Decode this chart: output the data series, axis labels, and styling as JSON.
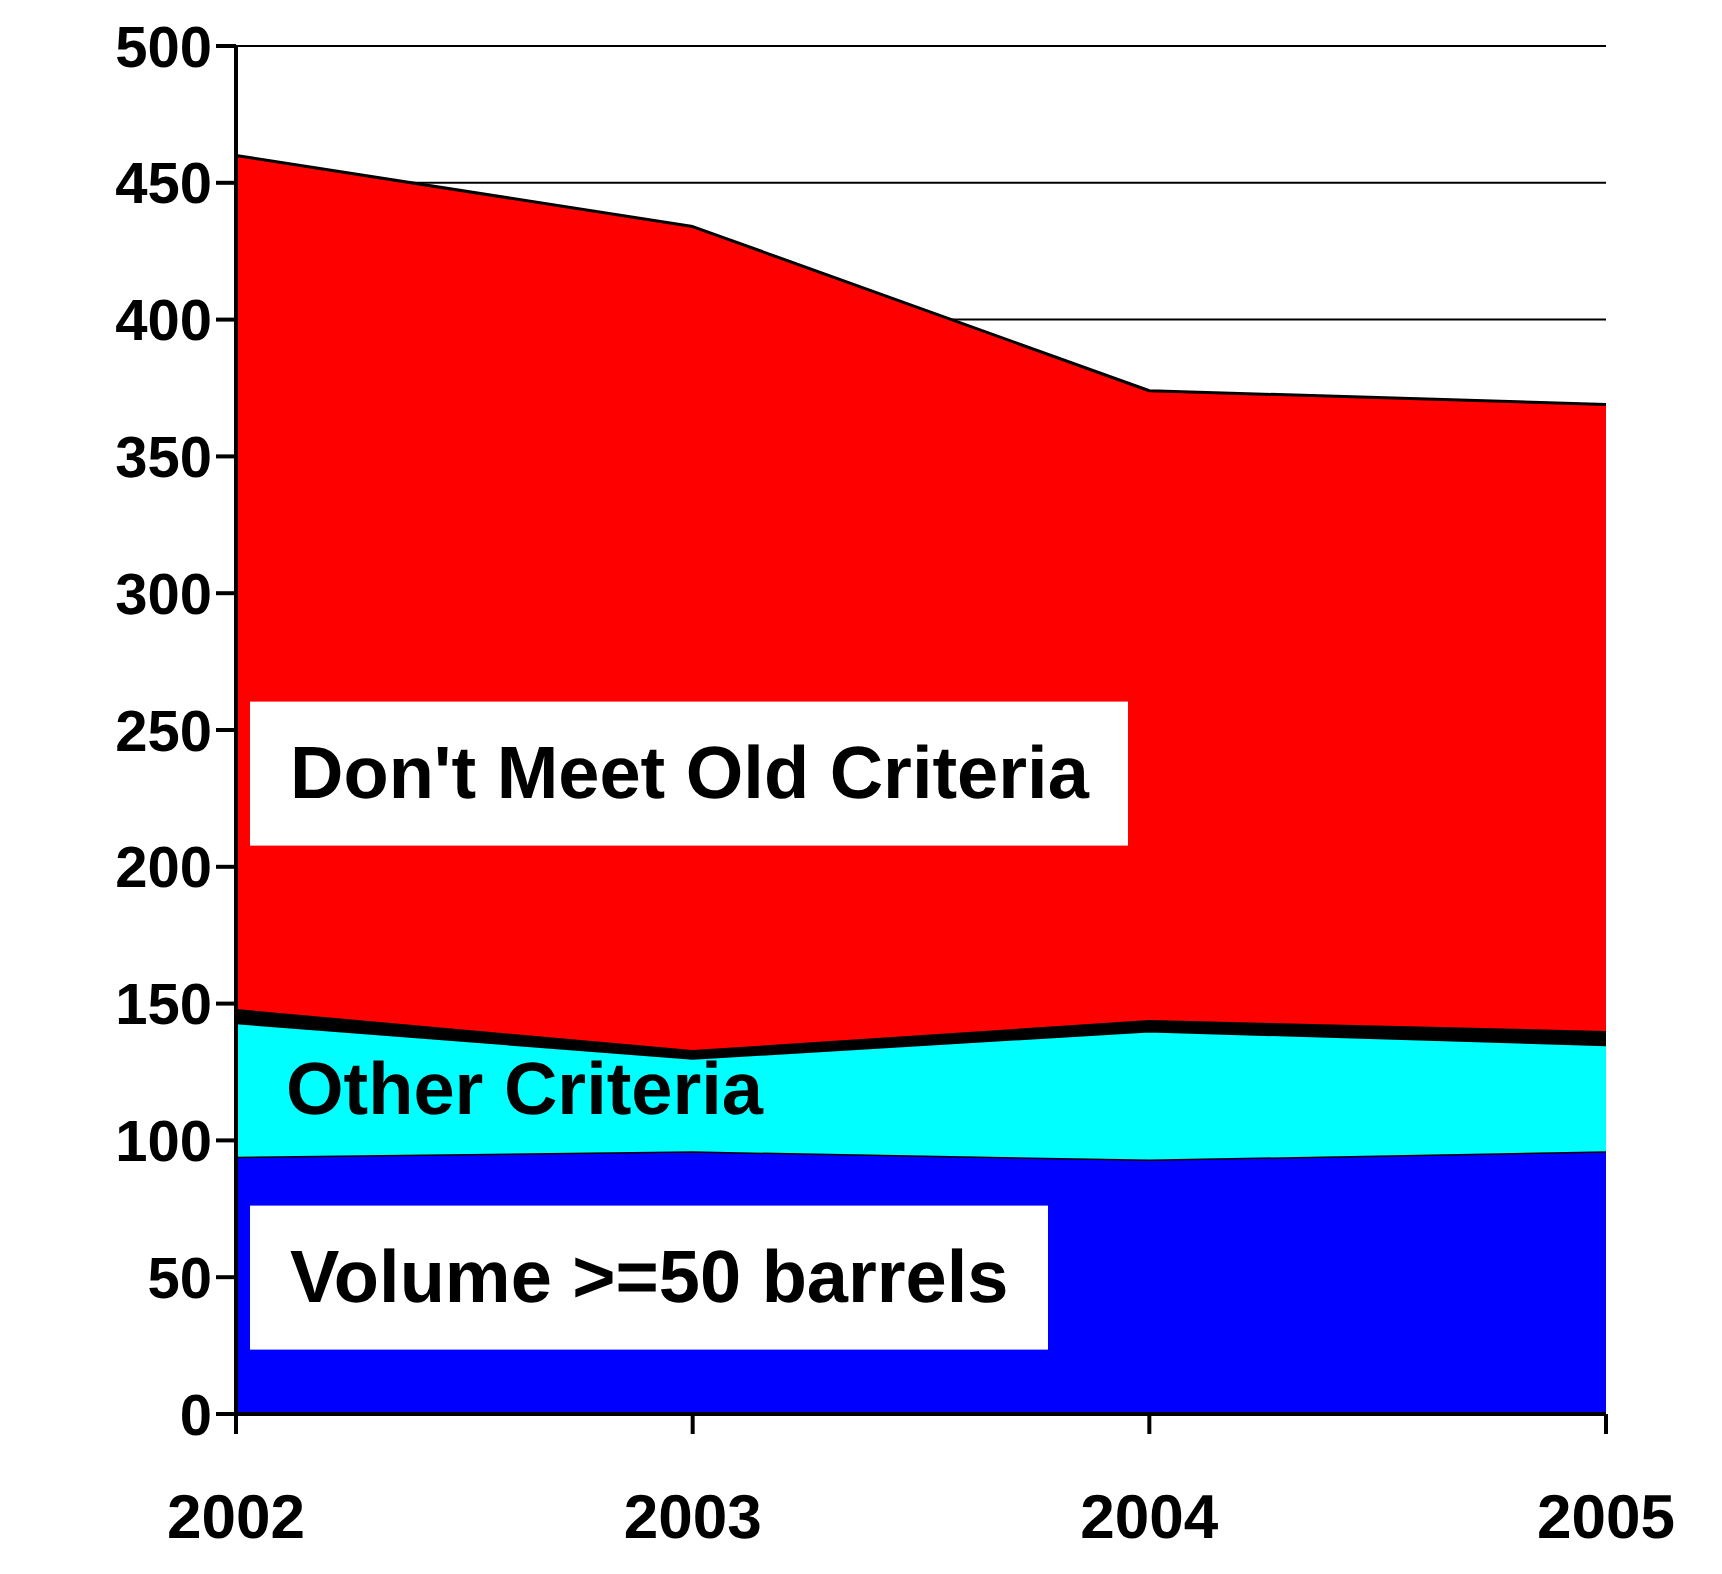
{
  "chart_data": {
    "type": "area",
    "stacked": true,
    "x": [
      2002,
      2003,
      2004,
      2005
    ],
    "xlim": [
      2002,
      2005
    ],
    "xticks": [
      2002,
      2003,
      2004,
      2005
    ],
    "ylim": [
      0,
      500
    ],
    "yticks": [
      0,
      50,
      100,
      150,
      200,
      250,
      300,
      350,
      400,
      450,
      500
    ],
    "grid": "y",
    "legend": false,
    "series": [
      {
        "name": "Volume >=50 barrels",
        "color": "#0000ff",
        "values": [
          94,
          96,
          93,
          96
        ]
      },
      {
        "name": "Other Criteria",
        "color": "#00ffff",
        "values": [
          49,
          34,
          47,
          39
        ]
      },
      {
        "color": "#000000",
        "values": [
          5,
          3,
          4,
          5
        ]
      },
      {
        "name": "Don't Meet Old Criteria",
        "color": "#ff0000",
        "values": [
          312,
          301,
          230,
          229
        ]
      }
    ]
  }
}
